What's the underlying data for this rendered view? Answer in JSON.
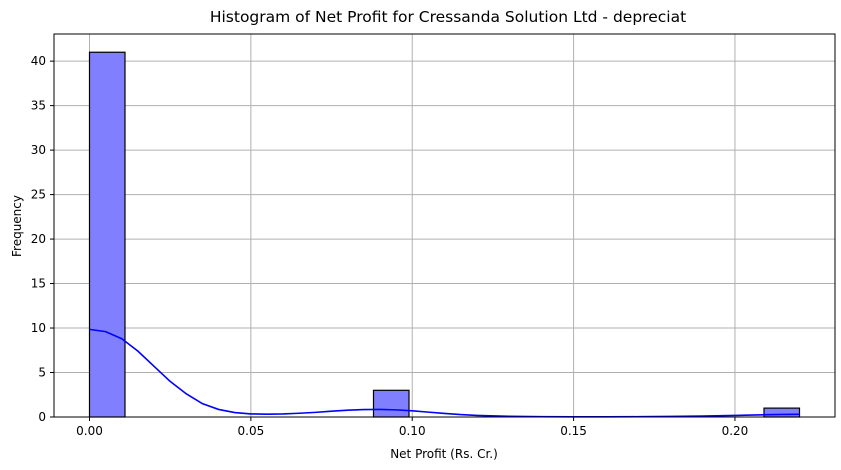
{
  "chart_data": {
    "type": "bar",
    "subtype": "histogram-with-kde",
    "title": "Histogram of Net Profit for Cressanda Solution Ltd - depreciat",
    "xlabel": "Net Profit (Rs. Cr.)",
    "ylabel": "Frequency",
    "xlim": [
      -0.011,
      0.231
    ],
    "ylim": [
      0,
      43.05
    ],
    "xticks": [
      0.0,
      0.05,
      0.1,
      0.15,
      0.2
    ],
    "xtick_labels": [
      "0.00",
      "0.05",
      "0.10",
      "0.15",
      "0.20"
    ],
    "yticks": [
      0,
      5,
      10,
      15,
      20,
      25,
      30,
      35,
      40
    ],
    "ytick_labels": [
      "0",
      "5",
      "10",
      "15",
      "20",
      "25",
      "30",
      "35",
      "40"
    ],
    "grid": true,
    "bin_width": 0.011,
    "bins": [
      {
        "x0": 0.0,
        "x1": 0.011,
        "count": 41
      },
      {
        "x0": 0.011,
        "x1": 0.022,
        "count": 0
      },
      {
        "x0": 0.022,
        "x1": 0.033,
        "count": 0
      },
      {
        "x0": 0.033,
        "x1": 0.044,
        "count": 0
      },
      {
        "x0": 0.044,
        "x1": 0.055,
        "count": 0
      },
      {
        "x0": 0.055,
        "x1": 0.066,
        "count": 0
      },
      {
        "x0": 0.066,
        "x1": 0.077,
        "count": 0
      },
      {
        "x0": 0.077,
        "x1": 0.088,
        "count": 0
      },
      {
        "x0": 0.088,
        "x1": 0.099,
        "count": 3
      },
      {
        "x0": 0.099,
        "x1": 0.11,
        "count": 0
      },
      {
        "x0": 0.11,
        "x1": 0.121,
        "count": 0
      },
      {
        "x0": 0.121,
        "x1": 0.132,
        "count": 0
      },
      {
        "x0": 0.132,
        "x1": 0.143,
        "count": 0
      },
      {
        "x0": 0.143,
        "x1": 0.154,
        "count": 0
      },
      {
        "x0": 0.154,
        "x1": 0.165,
        "count": 0
      },
      {
        "x0": 0.165,
        "x1": 0.176,
        "count": 0
      },
      {
        "x0": 0.176,
        "x1": 0.187,
        "count": 0
      },
      {
        "x0": 0.187,
        "x1": 0.198,
        "count": 0
      },
      {
        "x0": 0.198,
        "x1": 0.209,
        "count": 0
      },
      {
        "x0": 0.209,
        "x1": 0.22,
        "count": 1
      }
    ],
    "kde": {
      "x": [
        0.0,
        0.005,
        0.01,
        0.015,
        0.02,
        0.025,
        0.03,
        0.035,
        0.04,
        0.045,
        0.05,
        0.055,
        0.06,
        0.065,
        0.07,
        0.075,
        0.08,
        0.085,
        0.09,
        0.095,
        0.1,
        0.105,
        0.11,
        0.115,
        0.12,
        0.13,
        0.14,
        0.15,
        0.16,
        0.17,
        0.18,
        0.19,
        0.2,
        0.205,
        0.21,
        0.215,
        0.22
      ],
      "y": [
        9.85,
        9.6,
        8.8,
        7.4,
        5.7,
        4.0,
        2.6,
        1.5,
        0.85,
        0.5,
        0.35,
        0.32,
        0.35,
        0.42,
        0.52,
        0.65,
        0.77,
        0.84,
        0.85,
        0.8,
        0.7,
        0.55,
        0.4,
        0.27,
        0.18,
        0.08,
        0.04,
        0.02,
        0.02,
        0.03,
        0.06,
        0.11,
        0.18,
        0.22,
        0.26,
        0.29,
        0.3
      ]
    },
    "colors": {
      "bar_fill": "#8080ff",
      "bar_edge": "#000000",
      "kde_line": "#0000ff",
      "grid": "#b0b0b0"
    }
  }
}
